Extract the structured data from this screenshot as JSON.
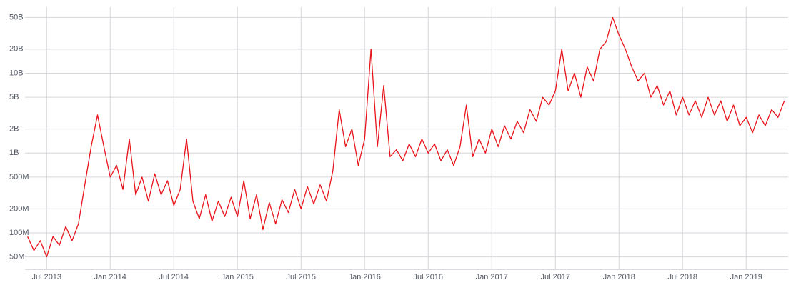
{
  "chart_data": {
    "type": "line",
    "y_scale": "log",
    "grid": true,
    "color": "#e8141b",
    "xlim": [
      2013.33,
      2019.33
    ],
    "xticks": [
      {
        "value": 2013.5,
        "label": "Jul 2013"
      },
      {
        "value": 2014.0,
        "label": "Jan 2014"
      },
      {
        "value": 2014.5,
        "label": "Jul 2014"
      },
      {
        "value": 2015.0,
        "label": "Jan 2015"
      },
      {
        "value": 2015.5,
        "label": "Jul 2015"
      },
      {
        "value": 2016.0,
        "label": "Jan 2016"
      },
      {
        "value": 2016.5,
        "label": "Jul 2016"
      },
      {
        "value": 2017.0,
        "label": "Jan 2017"
      },
      {
        "value": 2017.5,
        "label": "Jul 2017"
      },
      {
        "value": 2018.0,
        "label": "Jan 2018"
      },
      {
        "value": 2018.5,
        "label": "Jul 2018"
      },
      {
        "value": 2019.0,
        "label": "Jan 2019"
      }
    ],
    "ylim": [
      38000000,
      57000000000
    ],
    "yticks": [
      {
        "value": 50000000,
        "label": "50M"
      },
      {
        "value": 100000000,
        "label": "100M"
      },
      {
        "value": 200000000,
        "label": "200M"
      },
      {
        "value": 500000000,
        "label": "500M"
      },
      {
        "value": 1000000000,
        "label": "1B"
      },
      {
        "value": 2000000000,
        "label": "2B"
      },
      {
        "value": 5000000000,
        "label": "5B"
      },
      {
        "value": 10000000000,
        "label": "10B"
      },
      {
        "value": 20000000000,
        "label": "20B"
      },
      {
        "value": 50000000000,
        "label": "50B"
      }
    ],
    "x": [
      2013.35,
      2013.4,
      2013.45,
      2013.5,
      2013.55,
      2013.6,
      2013.65,
      2013.7,
      2013.75,
      2013.8,
      2013.85,
      2013.9,
      2013.95,
      2014.0,
      2014.05,
      2014.1,
      2014.15,
      2014.2,
      2014.25,
      2014.3,
      2014.35,
      2014.4,
      2014.45,
      2014.5,
      2014.55,
      2014.6,
      2014.65,
      2014.7,
      2014.75,
      2014.8,
      2014.85,
      2014.9,
      2014.95,
      2015.0,
      2015.05,
      2015.1,
      2015.15,
      2015.2,
      2015.25,
      2015.3,
      2015.35,
      2015.4,
      2015.45,
      2015.5,
      2015.55,
      2015.6,
      2015.65,
      2015.7,
      2015.75,
      2015.8,
      2015.85,
      2015.9,
      2015.95,
      2016.0,
      2016.05,
      2016.1,
      2016.15,
      2016.2,
      2016.25,
      2016.3,
      2016.35,
      2016.4,
      2016.45,
      2016.5,
      2016.55,
      2016.6,
      2016.65,
      2016.7,
      2016.75,
      2016.8,
      2016.85,
      2016.9,
      2016.95,
      2017.0,
      2017.05,
      2017.1,
      2017.15,
      2017.2,
      2017.25,
      2017.3,
      2017.35,
      2017.4,
      2017.45,
      2017.5,
      2017.55,
      2017.6,
      2017.65,
      2017.7,
      2017.75,
      2017.8,
      2017.85,
      2017.9,
      2017.95,
      2018.0,
      2018.05,
      2018.1,
      2018.15,
      2018.2,
      2018.25,
      2018.3,
      2018.35,
      2018.4,
      2018.45,
      2018.5,
      2018.55,
      2018.6,
      2018.65,
      2018.7,
      2018.75,
      2018.8,
      2018.85,
      2018.9,
      2018.95,
      2019.0,
      2019.05,
      2019.1,
      2019.15,
      2019.2,
      2019.25,
      2019.3
    ],
    "values": [
      90000000.0,
      60000000.0,
      80000000.0,
      50000000.0,
      90000000.0,
      70000000.0,
      120000000.0,
      80000000.0,
      130000000.0,
      400000000.0,
      1200000000.0,
      3000000000.0,
      1200000000.0,
      500000000.0,
      700000000.0,
      350000000.0,
      1500000000.0,
      300000000.0,
      500000000.0,
      250000000.0,
      550000000.0,
      300000000.0,
      450000000.0,
      220000000.0,
      350000000.0,
      1500000000.0,
      250000000.0,
      150000000.0,
      300000000.0,
      140000000.0,
      250000000.0,
      160000000.0,
      280000000.0,
      160000000.0,
      450000000.0,
      150000000.0,
      300000000.0,
      110000000.0,
      240000000.0,
      130000000.0,
      260000000.0,
      180000000.0,
      350000000.0,
      200000000.0,
      380000000.0,
      230000000.0,
      400000000.0,
      250000000.0,
      600000000.0,
      3500000000.0,
      1200000000.0,
      2000000000.0,
      700000000.0,
      1500000000.0,
      20000000000.0,
      1200000000.0,
      7000000000.0,
      900000000.0,
      1100000000.0,
      800000000.0,
      1300000000.0,
      900000000.0,
      1500000000.0,
      1000000000.0,
      1300000000.0,
      800000000.0,
      1100000000.0,
      700000000.0,
      1200000000.0,
      4000000000.0,
      900000000.0,
      1500000000.0,
      1000000000.0,
      2000000000.0,
      1200000000.0,
      2200000000.0,
      1500000000.0,
      2500000000.0,
      1800000000.0,
      3500000000.0,
      2500000000.0,
      5000000000.0,
      4000000000.0,
      6000000000.0,
      20000000000.0,
      6000000000.0,
      10000000000.0,
      5000000000.0,
      12000000000.0,
      8000000000.0,
      20000000000.0,
      25000000000.0,
      50000000000.0,
      30000000000.0,
      20000000000.0,
      12000000000.0,
      8000000000.0,
      10000000000.0,
      5000000000.0,
      7000000000.0,
      4000000000.0,
      6000000000.0,
      3000000000.0,
      5000000000.0,
      3000000000.0,
      4500000000.0,
      2800000000.0,
      5000000000.0,
      3000000000.0,
      4500000000.0,
      2500000000.0,
      4000000000.0,
      2200000000.0,
      2800000000.0,
      1800000000.0,
      3000000000.0,
      2200000000.0,
      3500000000.0,
      2800000000.0,
      4500000000.0
    ]
  }
}
